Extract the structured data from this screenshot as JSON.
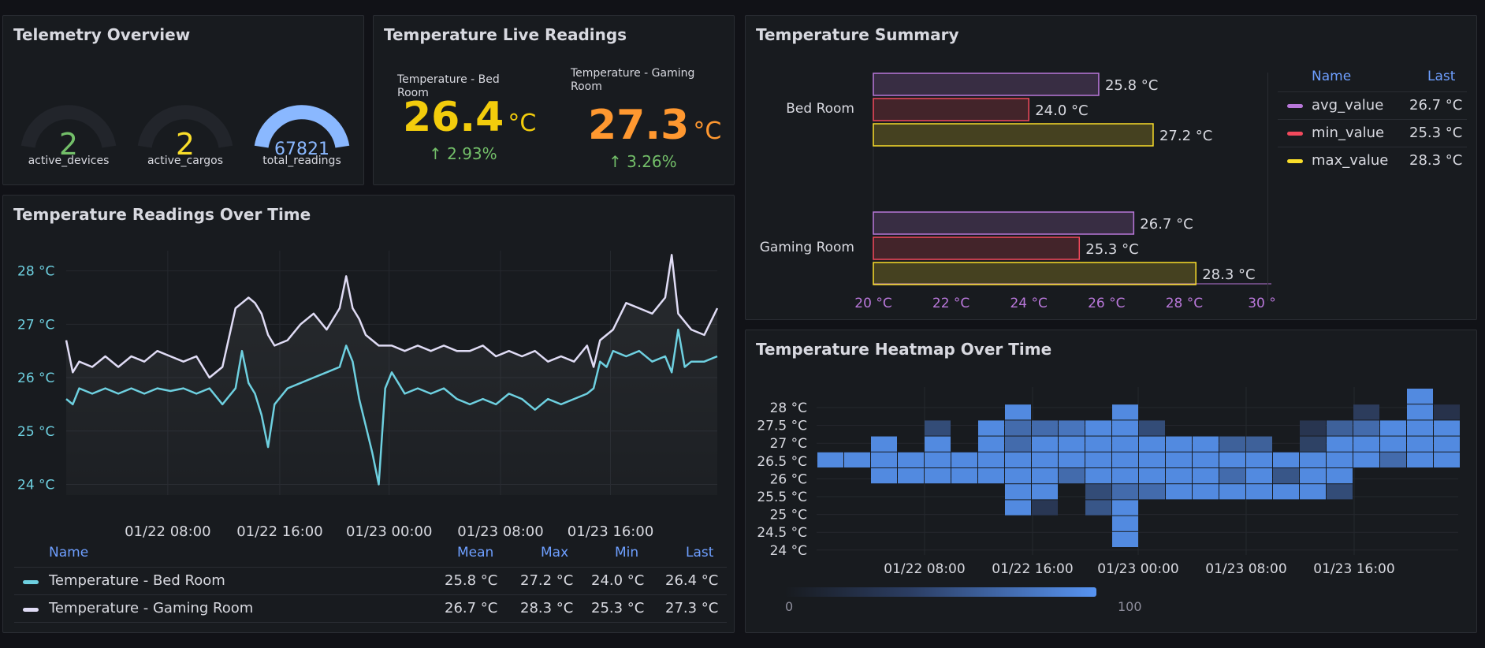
{
  "telemetry": {
    "title": "Telemetry Overview",
    "gauges": [
      {
        "value": "2",
        "label": "active_devices",
        "color": "#73bf69",
        "fill": 0
      },
      {
        "value": "2",
        "label": "active_cargos",
        "color": "#fade2a",
        "fill": 0
      },
      {
        "value": "67821",
        "label": "total_readings",
        "color": "#8ab8ff",
        "fill": 1
      }
    ]
  },
  "live": {
    "title": "Temperature Live Readings",
    "stats": [
      {
        "label": "Temperature - Bed Room",
        "value": "26.4",
        "unit": "°C",
        "change": "2.93%",
        "color": "#f2cc0c"
      },
      {
        "label": "Temperature - Gaming Room",
        "value": "27.3",
        "unit": "°C",
        "change": "3.26%",
        "color": "#ff9830"
      }
    ]
  },
  "summary": {
    "title": "Temperature Summary",
    "legend": {
      "name_header": "Name",
      "last_header": "Last",
      "items": [
        {
          "name": "avg_value",
          "last": "26.7 °C",
          "color": "#b877d9"
        },
        {
          "name": "min_value",
          "last": "25.3 °C",
          "color": "#f2495c"
        },
        {
          "name": "max_value",
          "last": "28.3 °C",
          "color": "#fade2a"
        }
      ]
    }
  },
  "readings": {
    "title": "Temperature Readings Over Time",
    "legend": {
      "headers": [
        "Name",
        "Mean",
        "Max",
        "Min",
        "Last"
      ],
      "rows": [
        {
          "name": "Temperature - Bed Room",
          "mean": "25.8 °C",
          "max": "27.2 °C",
          "min": "24.0 °C",
          "last": "26.4 °C",
          "color": "#6ed0e0"
        },
        {
          "name": "Temperature - Gaming Room",
          "mean": "26.7 °C",
          "max": "28.3 °C",
          "min": "25.3 °C",
          "last": "27.3 °C",
          "color": "#e0dcf5"
        }
      ]
    }
  },
  "heatmap": {
    "title": "Temperature Heatmap Over Time",
    "scale_min": "0",
    "scale_max": "100"
  },
  "chart_data": [
    {
      "type": "bar",
      "orientation": "horizontal",
      "categories": [
        "Bed Room",
        "Gaming Room"
      ],
      "series": [
        {
          "name": "avg_value",
          "values": [
            25.8,
            26.7
          ],
          "labels": [
            "25.8 °C",
            "26.7 °C"
          ],
          "color": "#b877d9"
        },
        {
          "name": "min_value",
          "values": [
            24.0,
            25.3
          ],
          "labels": [
            "24.0 °C",
            "25.3 °C"
          ],
          "color": "#f2495c"
        },
        {
          "name": "max_value",
          "values": [
            27.2,
            28.3
          ],
          "labels": [
            "27.2 °C",
            "28.3 °C"
          ],
          "color": "#fade2a"
        }
      ],
      "xlim": [
        20,
        30
      ],
      "xticks": [
        "20 °C",
        "22 °C",
        "24 °C",
        "26 °C",
        "28 °C",
        "30 °"
      ],
      "legend": "right"
    },
    {
      "type": "line",
      "xlim": [
        0,
        1
      ],
      "ylim": [
        23.8,
        28.6
      ],
      "yticks": [
        {
          "v": 24,
          "t": "24 °C"
        },
        {
          "v": 25,
          "t": "25 °C"
        },
        {
          "v": 26,
          "t": "26 °C"
        },
        {
          "v": 27,
          "t": "27 °C"
        },
        {
          "v": 28,
          "t": "28 °C"
        }
      ],
      "xticks": [
        {
          "v": 0.156,
          "t": "01/22 08:00"
        },
        {
          "v": 0.328,
          "t": "01/22 16:00"
        },
        {
          "v": 0.496,
          "t": "01/23 00:00"
        },
        {
          "v": 0.667,
          "t": "01/23 08:00"
        },
        {
          "v": 0.836,
          "t": "01/23 16:00"
        }
      ],
      "grid": true,
      "legend": "bottom",
      "series": [
        {
          "name": "Temperature - Bed Room",
          "color": "#6ed0e0",
          "points": [
            [
              0,
              25.6
            ],
            [
              0.01,
              25.5
            ],
            [
              0.02,
              25.8
            ],
            [
              0.04,
              25.7
            ],
            [
              0.06,
              25.8
            ],
            [
              0.08,
              25.7
            ],
            [
              0.1,
              25.8
            ],
            [
              0.12,
              25.7
            ],
            [
              0.14,
              25.8
            ],
            [
              0.16,
              25.75
            ],
            [
              0.18,
              25.8
            ],
            [
              0.2,
              25.7
            ],
            [
              0.22,
              25.8
            ],
            [
              0.24,
              25.5
            ],
            [
              0.26,
              25.8
            ],
            [
              0.27,
              26.5
            ],
            [
              0.28,
              25.9
            ],
            [
              0.29,
              25.7
            ],
            [
              0.3,
              25.3
            ],
            [
              0.31,
              24.7
            ],
            [
              0.32,
              25.5
            ],
            [
              0.34,
              25.8
            ],
            [
              0.36,
              25.9
            ],
            [
              0.38,
              26.0
            ],
            [
              0.4,
              26.1
            ],
            [
              0.42,
              26.2
            ],
            [
              0.43,
              26.6
            ],
            [
              0.44,
              26.3
            ],
            [
              0.45,
              25.6
            ],
            [
              0.46,
              25.1
            ],
            [
              0.47,
              24.6
            ],
            [
              0.48,
              24.0
            ],
            [
              0.49,
              25.8
            ],
            [
              0.5,
              26.1
            ],
            [
              0.51,
              25.9
            ],
            [
              0.52,
              25.7
            ],
            [
              0.54,
              25.8
            ],
            [
              0.56,
              25.7
            ],
            [
              0.58,
              25.8
            ],
            [
              0.6,
              25.6
            ],
            [
              0.62,
              25.5
            ],
            [
              0.64,
              25.6
            ],
            [
              0.66,
              25.5
            ],
            [
              0.68,
              25.7
            ],
            [
              0.7,
              25.6
            ],
            [
              0.72,
              25.4
            ],
            [
              0.74,
              25.6
            ],
            [
              0.76,
              25.5
            ],
            [
              0.78,
              25.6
            ],
            [
              0.8,
              25.7
            ],
            [
              0.81,
              25.8
            ],
            [
              0.82,
              26.3
            ],
            [
              0.83,
              26.2
            ],
            [
              0.84,
              26.5
            ],
            [
              0.86,
              26.4
            ],
            [
              0.88,
              26.5
            ],
            [
              0.9,
              26.3
            ],
            [
              0.92,
              26.4
            ],
            [
              0.93,
              26.1
            ],
            [
              0.94,
              26.9
            ],
            [
              0.95,
              26.2
            ],
            [
              0.96,
              26.3
            ],
            [
              0.98,
              26.3
            ],
            [
              1.0,
              26.4
            ]
          ]
        },
        {
          "name": "Temperature - Gaming Room",
          "color": "#e0dcf5",
          "points": [
            [
              0,
              26.7
            ],
            [
              0.01,
              26.1
            ],
            [
              0.02,
              26.3
            ],
            [
              0.04,
              26.2
            ],
            [
              0.06,
              26.4
            ],
            [
              0.08,
              26.2
            ],
            [
              0.1,
              26.4
            ],
            [
              0.12,
              26.3
            ],
            [
              0.14,
              26.5
            ],
            [
              0.16,
              26.4
            ],
            [
              0.18,
              26.3
            ],
            [
              0.2,
              26.4
            ],
            [
              0.22,
              26.0
            ],
            [
              0.24,
              26.2
            ],
            [
              0.26,
              27.3
            ],
            [
              0.27,
              27.4
            ],
            [
              0.28,
              27.5
            ],
            [
              0.29,
              27.4
            ],
            [
              0.3,
              27.2
            ],
            [
              0.31,
              26.8
            ],
            [
              0.32,
              26.6
            ],
            [
              0.34,
              26.7
            ],
            [
              0.36,
              27.0
            ],
            [
              0.38,
              27.2
            ],
            [
              0.4,
              26.9
            ],
            [
              0.42,
              27.3
            ],
            [
              0.43,
              27.9
            ],
            [
              0.44,
              27.3
            ],
            [
              0.45,
              27.1
            ],
            [
              0.46,
              26.8
            ],
            [
              0.48,
              26.6
            ],
            [
              0.5,
              26.6
            ],
            [
              0.52,
              26.5
            ],
            [
              0.54,
              26.6
            ],
            [
              0.56,
              26.5
            ],
            [
              0.58,
              26.6
            ],
            [
              0.6,
              26.5
            ],
            [
              0.62,
              26.5
            ],
            [
              0.64,
              26.6
            ],
            [
              0.66,
              26.4
            ],
            [
              0.68,
              26.5
            ],
            [
              0.7,
              26.4
            ],
            [
              0.72,
              26.5
            ],
            [
              0.74,
              26.3
            ],
            [
              0.76,
              26.4
            ],
            [
              0.78,
              26.3
            ],
            [
              0.8,
              26.6
            ],
            [
              0.81,
              26.2
            ],
            [
              0.82,
              26.7
            ],
            [
              0.84,
              26.9
            ],
            [
              0.86,
              27.4
            ],
            [
              0.88,
              27.3
            ],
            [
              0.9,
              27.2
            ],
            [
              0.92,
              27.5
            ],
            [
              0.93,
              28.3
            ],
            [
              0.94,
              27.2
            ],
            [
              0.96,
              26.9
            ],
            [
              0.98,
              26.8
            ],
            [
              1.0,
              27.3
            ]
          ]
        }
      ]
    },
    {
      "type": "heatmap",
      "yticks": [
        "24 °C",
        "24.5 °C",
        "25 °C",
        "25.5 °C",
        "26 °C",
        "26.5 °C",
        "27 °C",
        "27.5 °C",
        "28 °C"
      ],
      "xticks": [
        "01/22 08:00",
        "01/22 16:00",
        "01/23 00:00",
        "01/23 08:00",
        "01/23 16:00"
      ],
      "color_scale": [
        0,
        100
      ],
      "columns": 24,
      "rows": [
        "28.5",
        "28",
        "27.5",
        "27",
        "26.5",
        "26",
        "25.5",
        "25",
        "24.5",
        "24"
      ],
      "cells": [
        "..................................................1.....",
        "...........9...........9..................1....9.........",
        ""
      ],
      "grid": [
        [
          0,
          0,
          0,
          0,
          0,
          0,
          0,
          0,
          0,
          0,
          0,
          0,
          0,
          0,
          0,
          0,
          0,
          0,
          0,
          0,
          0,
          0,
          90,
          0
        ],
        [
          0,
          0,
          0,
          0,
          0,
          0,
          0,
          90,
          0,
          0,
          0,
          90,
          0,
          0,
          0,
          0,
          0,
          0,
          0,
          0,
          15,
          0,
          90,
          5
        ],
        [
          0,
          0,
          0,
          0,
          30,
          0,
          90,
          60,
          60,
          70,
          90,
          90,
          30,
          0,
          0,
          0,
          0,
          0,
          8,
          50,
          60,
          90,
          90,
          90
        ],
        [
          0,
          0,
          90,
          0,
          90,
          0,
          90,
          60,
          90,
          90,
          90,
          90,
          90,
          90,
          90,
          50,
          50,
          0,
          20,
          90,
          90,
          90,
          90,
          90
        ],
        [
          90,
          90,
          90,
          90,
          90,
          90,
          90,
          90,
          90,
          90,
          90,
          90,
          90,
          90,
          90,
          90,
          90,
          90,
          90,
          90,
          90,
          60,
          90,
          90
        ],
        [
          0,
          0,
          90,
          90,
          90,
          90,
          90,
          90,
          90,
          60,
          90,
          90,
          90,
          90,
          90,
          60,
          90,
          40,
          90,
          90,
          0,
          0,
          0,
          0
        ],
        [
          0,
          0,
          0,
          0,
          0,
          0,
          0,
          90,
          90,
          0,
          30,
          60,
          60,
          90,
          90,
          90,
          90,
          90,
          90,
          30,
          0,
          0,
          0,
          0
        ],
        [
          0,
          0,
          0,
          0,
          0,
          0,
          0,
          90,
          10,
          0,
          40,
          90,
          0,
          0,
          0,
          0,
          0,
          0,
          0,
          0,
          0,
          0,
          0,
          0
        ],
        [
          0,
          0,
          0,
          0,
          0,
          0,
          0,
          0,
          0,
          0,
          0,
          90,
          0,
          0,
          0,
          0,
          0,
          0,
          0,
          0,
          0,
          0,
          0,
          0
        ],
        [
          0,
          0,
          0,
          0,
          0,
          0,
          0,
          0,
          0,
          0,
          0,
          90,
          0,
          0,
          0,
          0,
          0,
          0,
          0,
          0,
          0,
          0,
          0,
          0
        ]
      ]
    }
  ]
}
